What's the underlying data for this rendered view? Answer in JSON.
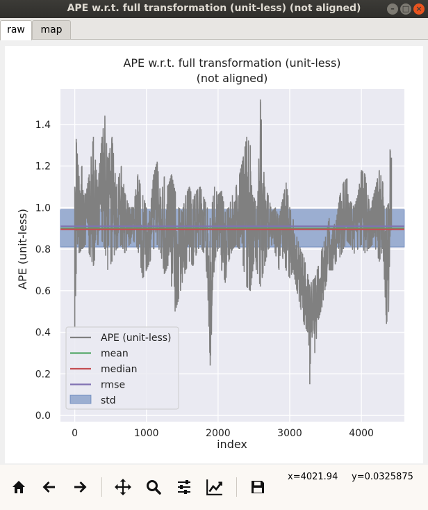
{
  "window": {
    "title": "APE w.r.t. full transformation (unit-less) (not aligned)"
  },
  "tabs": [
    {
      "label": "raw"
    },
    {
      "label": "map"
    }
  ],
  "toolbar": {
    "x_readout": "x=4021.94",
    "y_readout": "y=0.0325875"
  },
  "icons": [
    "home-icon",
    "back-arrow-icon",
    "forward-arrow-icon",
    "pan-move-icon",
    "zoom-icon",
    "configure-subplots-icon",
    "edit-axes-icon",
    "save-icon"
  ],
  "chart_data": {
    "type": "line",
    "title": "APE w.r.t. full transformation (unit-less)",
    "subtitle": "(not aligned)",
    "xlabel": "index",
    "ylabel": "APE (unit-less)",
    "xlim": [
      -200,
      4600
    ],
    "ylim": [
      -0.03,
      1.57
    ],
    "xticks": [
      0,
      1000,
      2000,
      3000,
      4000
    ],
    "yticks": [
      0.0,
      0.2,
      0.4,
      0.6,
      0.8,
      1.0,
      1.2,
      1.4
    ],
    "ytick_labels": [
      "0.0",
      "0.2",
      "0.4",
      "0.6",
      "0.8",
      "1.0",
      "1.2",
      "1.4"
    ],
    "grid": true,
    "legend_position": "lower-left",
    "colors": {
      "ape": "#808080",
      "mean": "#55a868",
      "median": "#c44e52",
      "rmse": "#8172b2",
      "std": "#4c72b0",
      "background": "#eaeaf2"
    },
    "series": [
      {
        "name": "APE (unit-less)",
        "kind": "line"
      },
      {
        "name": "mean",
        "kind": "hline",
        "value": 0.9
      },
      {
        "name": "median",
        "kind": "hline",
        "value": 0.895
      },
      {
        "name": "rmse",
        "kind": "hline",
        "value": 0.91
      },
      {
        "name": "std",
        "kind": "band",
        "lower": 0.81,
        "upper": 0.99
      }
    ],
    "ape_envelope": {
      "x": [
        0,
        20,
        60,
        100,
        150,
        200,
        260,
        320,
        380,
        420,
        460,
        520,
        580,
        650,
        700,
        760,
        820,
        880,
        950,
        1000,
        1050,
        1100,
        1150,
        1200,
        1250,
        1300,
        1350,
        1400,
        1450,
        1500,
        1550,
        1600,
        1650,
        1700,
        1750,
        1800,
        1850,
        1890,
        1950,
        2000,
        2050,
        2100,
        2150,
        2200,
        2250,
        2300,
        2350,
        2400,
        2450,
        2500,
        2550,
        2590,
        2650,
        2700,
        2750,
        2800,
        2850,
        2900,
        2950,
        3000,
        3050,
        3100,
        3150,
        3200,
        3250,
        3280,
        3300,
        3350,
        3400,
        3450,
        3500,
        3550,
        3600,
        3650,
        3700,
        3750,
        3800,
        3850,
        3900,
        3950,
        4000,
        4050,
        4100,
        4150,
        4200,
        4250,
        4300,
        4350,
        4380,
        4400,
        4420
      ],
      "low": [
        0.42,
        0.68,
        0.78,
        0.8,
        0.82,
        0.78,
        0.72,
        0.82,
        0.84,
        0.8,
        0.7,
        0.74,
        0.8,
        0.82,
        0.78,
        0.82,
        0.84,
        0.8,
        0.66,
        0.7,
        0.74,
        0.8,
        0.82,
        0.78,
        0.68,
        0.72,
        0.62,
        0.5,
        0.56,
        0.64,
        0.7,
        0.74,
        0.72,
        0.78,
        0.82,
        0.78,
        0.66,
        0.24,
        0.74,
        0.8,
        0.7,
        0.64,
        0.74,
        0.8,
        0.82,
        0.8,
        0.72,
        0.62,
        0.6,
        0.74,
        0.68,
        0.62,
        0.72,
        0.8,
        0.82,
        0.78,
        0.7,
        0.76,
        0.7,
        0.66,
        0.7,
        0.6,
        0.52,
        0.44,
        0.4,
        0.15,
        0.4,
        0.3,
        0.46,
        0.52,
        0.62,
        0.7,
        0.7,
        0.74,
        0.76,
        0.8,
        0.84,
        0.82,
        0.78,
        0.8,
        0.82,
        0.78,
        0.8,
        0.82,
        0.8,
        0.74,
        0.8,
        0.44,
        0.5,
        0.86,
        0.9
      ],
      "high": [
        1.1,
        1.33,
        1.15,
        1.2,
        1.05,
        1.16,
        1.34,
        1.1,
        1.34,
        1.44,
        1.22,
        1.34,
        1.1,
        1.2,
        1.07,
        1.0,
        1.0,
        1.16,
        1.06,
        1.0,
        0.98,
        1.16,
        1.22,
        1.05,
        1.15,
        1.1,
        1.16,
        1.08,
        1.0,
        0.98,
        1.06,
        1.1,
        1.04,
        1.08,
        1.1,
        1.05,
        1.0,
        0.95,
        1.1,
        1.06,
        1.08,
        0.98,
        1.0,
        1.06,
        1.1,
        1.16,
        1.24,
        1.34,
        1.3,
        1.05,
        1.0,
        1.52,
        1.1,
        1.06,
        0.98,
        1.0,
        0.95,
        1.04,
        1.12,
        1.0,
        0.94,
        0.86,
        0.8,
        0.76,
        0.68,
        0.62,
        0.64,
        0.66,
        0.72,
        0.8,
        0.86,
        0.95,
        0.9,
        0.94,
        1.06,
        1.12,
        1.14,
        1.03,
        1.0,
        1.06,
        1.18,
        1.16,
        1.04,
        1.03,
        1.1,
        1.18,
        1.12,
        1.0,
        1.02,
        1.28,
        1.24
      ]
    }
  }
}
